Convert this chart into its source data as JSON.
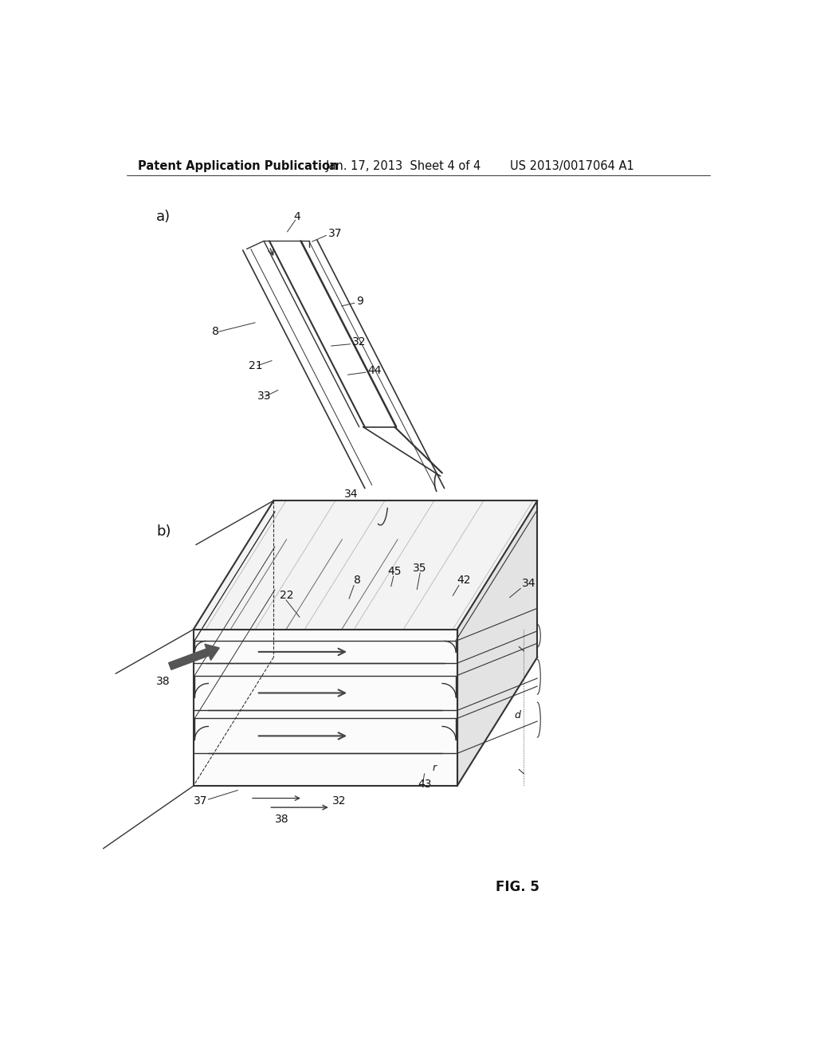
{
  "bg_color": "#ffffff",
  "header_left": "Patent Application Publication",
  "header_mid": "Jan. 17, 2013  Sheet 4 of 4",
  "header_right": "US 2013/0017064 A1",
  "line_color": "#333333",
  "text_color": "#111111",
  "fig_label": "FIG. 5"
}
